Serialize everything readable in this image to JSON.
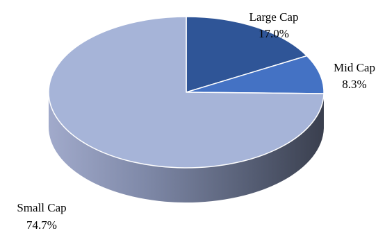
{
  "chart_data": {
    "type": "pie",
    "title": "",
    "style": "3d",
    "categories": [
      "Large Cap",
      "Mid Cap",
      "Small Cap"
    ],
    "values": [
      17.0,
      8.3,
      74.7
    ],
    "value_labels": [
      "17.0%",
      "8.3%",
      "74.7%"
    ],
    "colors": [
      "#2F5597",
      "#4472C4",
      "#A6B4D8"
    ],
    "legend": "none"
  }
}
